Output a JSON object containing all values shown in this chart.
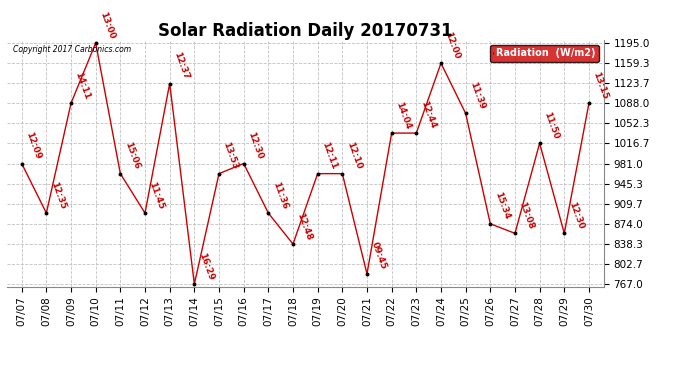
{
  "title": "Solar Radiation Daily 20170731",
  "copyright_text": "Copyright 2017 Carbonics.com",
  "legend_label": "Radiation  (W/m2)",
  "x_labels": [
    "07/07",
    "07/08",
    "07/09",
    "07/10",
    "07/11",
    "07/12",
    "07/13",
    "07/14",
    "07/15",
    "07/16",
    "07/17",
    "07/18",
    "07/19",
    "07/20",
    "07/21",
    "07/22",
    "07/23",
    "07/24",
    "07/25",
    "07/26",
    "07/27",
    "07/28",
    "07/29",
    "07/30"
  ],
  "y_values": [
    981,
    893,
    1088,
    1195,
    963,
    893,
    1123,
    767,
    963,
    981,
    893,
    838,
    963,
    963,
    785,
    1035,
    1035,
    1159,
    1070,
    874,
    857,
    1017,
    857,
    1088
  ],
  "point_labels": [
    "12:09",
    "12:35",
    "14:11",
    "13:00",
    "15:06",
    "11:45",
    "12:37",
    "16:29",
    "13:53",
    "12:30",
    "11:36",
    "12:48",
    "12:11",
    "12:10",
    "09:45",
    "14:04",
    "12:44",
    "12:00",
    "11:39",
    "15:34",
    "13:08",
    "11:50",
    "12:30",
    "13:15"
  ],
  "ylim_min": 767.0,
  "ylim_max": 1195.0,
  "y_ticks": [
    767.0,
    802.7,
    838.3,
    874.0,
    909.7,
    945.3,
    981.0,
    1016.7,
    1052.3,
    1088.0,
    1123.7,
    1159.3,
    1195.0
  ],
  "y_tick_labels": [
    "767.0",
    "802.7",
    "838.3",
    "874.0",
    "909.7",
    "945.3",
    "981.0",
    "1016.7",
    "1052.3",
    "1088.0",
    "1123.7",
    "1159.3",
    "1195.0"
  ],
  "line_color": "#cc0000",
  "marker_color": "#000000",
  "bg_color": "#ffffff",
  "grid_color": "#bbbbbb",
  "label_color": "#cc0000",
  "legend_bg": "#cc0000",
  "legend_text_color": "#ffffff",
  "title_fontsize": 12,
  "label_fontsize": 6.5,
  "tick_fontsize": 7.5,
  "label_rotation": -70
}
